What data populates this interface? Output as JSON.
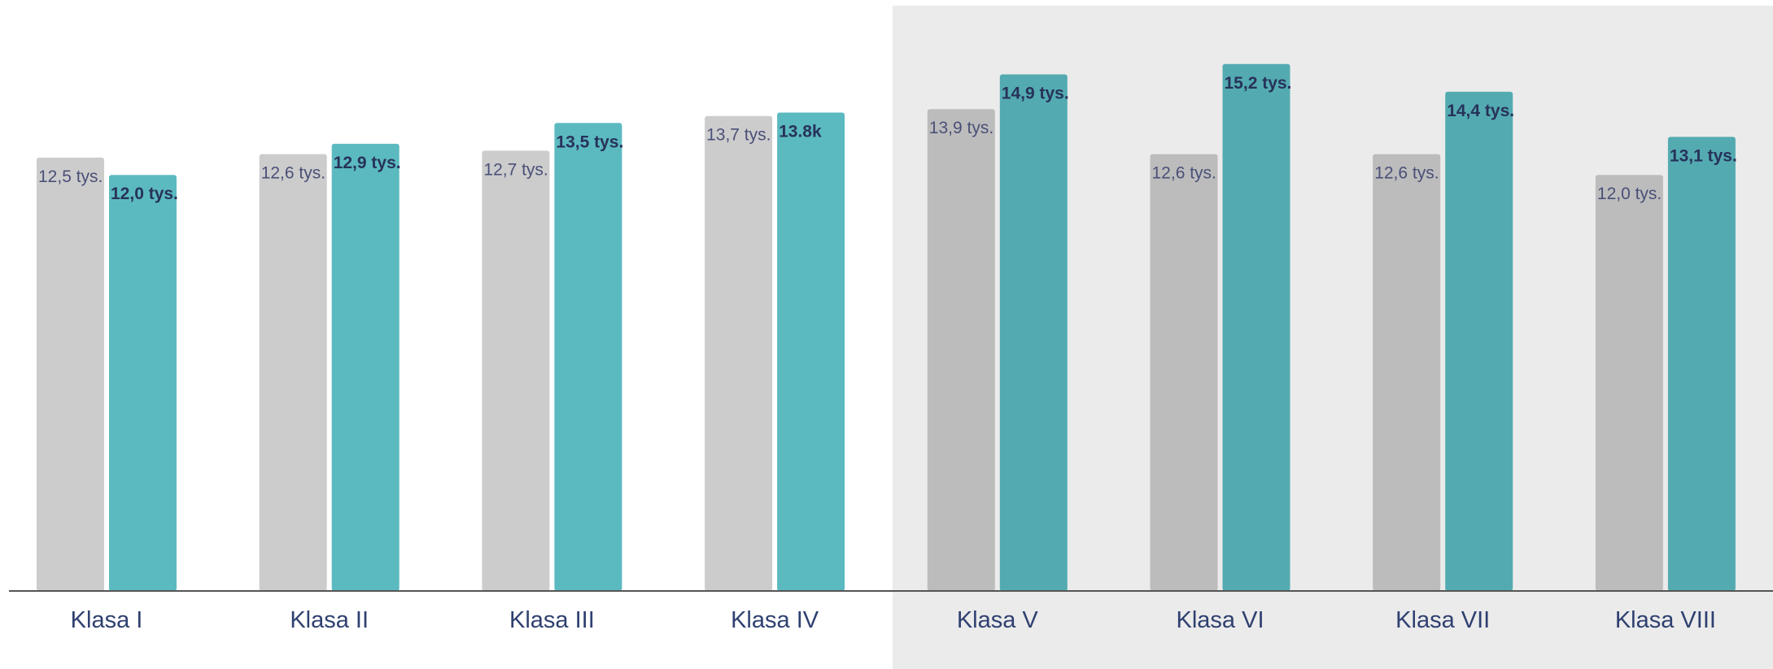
{
  "chart_data": {
    "type": "bar",
    "categories": [
      "Klasa I",
      "Klasa II",
      "Klasa III",
      "Klasa IV",
      "Klasa V",
      "Klasa VI",
      "Klasa VII",
      "Klasa VIII"
    ],
    "series": [
      {
        "color": "#cccccc",
        "values": [
          12.5,
          12.6,
          12.7,
          13.7,
          13.9,
          12.6,
          12.6,
          12.0
        ],
        "value_labels": [
          "12,5 tys.",
          "12,6 tys.",
          "12,7 tys.",
          "13,7 tys.",
          "13,9 tys.",
          "12,6 tys.",
          "12,6 tys.",
          "12,0 tys."
        ]
      },
      {
        "color": "#5bbac0",
        "values": [
          12.0,
          12.9,
          13.5,
          13.8,
          14.9,
          15.2,
          14.4,
          13.1
        ],
        "value_labels": [
          "12,0 tys.",
          "12,9 tys.",
          "13,5 tys.",
          "13.8k",
          "14,9 tys.",
          "15,2 tys.",
          "14,4 tys.",
          "13,1 tys."
        ]
      }
    ],
    "ylim": [
      0,
      17
    ]
  }
}
